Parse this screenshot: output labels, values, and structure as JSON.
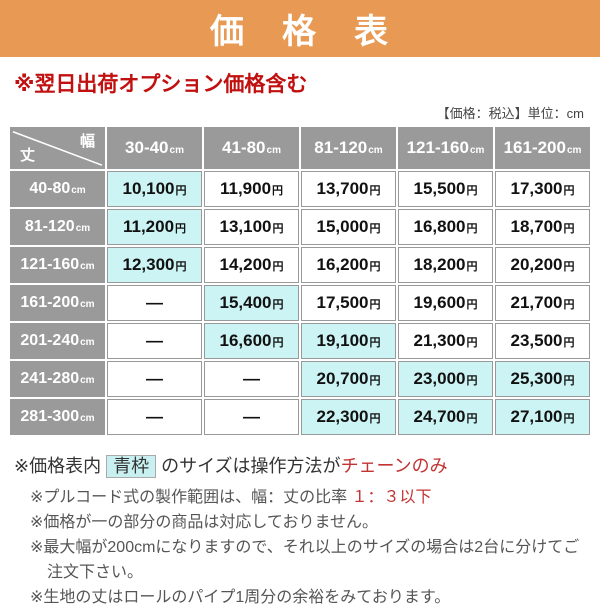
{
  "accent_colors": {
    "banner_orange": "#E89A54",
    "header_gray": "#9A9A9A",
    "highlight_cyan": "#CDF4F4",
    "note_red": "#C01010",
    "em_red": "#C33333"
  },
  "banner": {
    "title": "価　格　表"
  },
  "top_note": "※翌日出荷オプション価格含む",
  "unit_note": "【価格：税込】単位：cm",
  "table": {
    "axis": {
      "col": "幅",
      "row": "丈"
    },
    "unit": "cm",
    "yen": "円",
    "dash": "—",
    "col_headers": [
      "30-40",
      "41-80",
      "81-120",
      "121-160",
      "161-200"
    ],
    "rows": [
      {
        "label": "40-80",
        "cells": [
          {
            "v": "10,100",
            "hl": true
          },
          {
            "v": "11,900"
          },
          {
            "v": "13,700"
          },
          {
            "v": "15,500"
          },
          {
            "v": "17,300"
          }
        ]
      },
      {
        "label": "81-120",
        "cells": [
          {
            "v": "11,200",
            "hl": true
          },
          {
            "v": "13,100"
          },
          {
            "v": "15,000"
          },
          {
            "v": "16,800"
          },
          {
            "v": "18,700"
          }
        ]
      },
      {
        "label": "121-160",
        "cells": [
          {
            "v": "12,300",
            "hl": true
          },
          {
            "v": "14,200"
          },
          {
            "v": "16,200"
          },
          {
            "v": "18,200"
          },
          {
            "v": "20,200"
          }
        ]
      },
      {
        "label": "161-200",
        "cells": [
          {
            "v": "—",
            "dash": true
          },
          {
            "v": "15,400",
            "hl": true
          },
          {
            "v": "17,500"
          },
          {
            "v": "19,600"
          },
          {
            "v": "21,700"
          }
        ]
      },
      {
        "label": "201-240",
        "cells": [
          {
            "v": "—",
            "dash": true
          },
          {
            "v": "16,600",
            "hl": true
          },
          {
            "v": "19,100",
            "hl": true
          },
          {
            "v": "21,300"
          },
          {
            "v": "23,500"
          }
        ]
      },
      {
        "label": "241-280",
        "cells": [
          {
            "v": "—",
            "dash": true
          },
          {
            "v": "—",
            "dash": true
          },
          {
            "v": "20,700",
            "hl": true
          },
          {
            "v": "23,000",
            "hl": true
          },
          {
            "v": "25,300",
            "hl": true
          }
        ]
      },
      {
        "label": "281-300",
        "cells": [
          {
            "v": "—",
            "dash": true
          },
          {
            "v": "—",
            "dash": true
          },
          {
            "v": "22,300",
            "hl": true
          },
          {
            "v": "24,700",
            "hl": true
          },
          {
            "v": "27,100",
            "hl": true
          }
        ]
      }
    ]
  },
  "footnotes": {
    "main": [
      {
        "t": "※価格表内"
      },
      {
        "t": "青枠",
        "badge": true
      },
      {
        "t": "のサイズは操作方法が"
      },
      {
        "t": "チェーンのみ",
        "red": true
      }
    ],
    "items": [
      [
        {
          "t": "※プルコード式の製作範囲は、幅：丈の比率 "
        },
        {
          "t": "１：３以下",
          "red": true
        }
      ],
      [
        {
          "t": "※価格が一の部分の商品は対応しておりません。"
        }
      ],
      [
        {
          "t": "※最大幅が200cmになりますので、それ以上のサイズの場合は2台に分けてご注文下さい。"
        }
      ],
      [
        {
          "t": "※生地の丈はロールのパイプ1周分の余裕をみております。"
        }
      ]
    ]
  },
  "chart_data": {
    "type": "table",
    "title": "価格表",
    "subtitle": "※翌日出荷オプション価格含む",
    "unit": "cm",
    "price_note": "【価格：税込】単位：cm",
    "columns_width_cm": [
      "30-40",
      "41-80",
      "81-120",
      "121-160",
      "161-200"
    ],
    "rows_length_cm": [
      "40-80",
      "81-120",
      "121-160",
      "161-200",
      "201-240",
      "241-280",
      "281-300"
    ],
    "prices_yen": [
      [
        10100,
        11900,
        13700,
        15500,
        17300
      ],
      [
        11200,
        13100,
        15000,
        16800,
        18700
      ],
      [
        12300,
        14200,
        16200,
        18200,
        20200
      ],
      [
        null,
        15400,
        17500,
        19600,
        21700
      ],
      [
        null,
        16600,
        19100,
        21300,
        23500
      ],
      [
        null,
        null,
        20700,
        23000,
        25300
      ],
      [
        null,
        null,
        22300,
        24700,
        27100
      ]
    ],
    "highlight_meaning": "青枠（水色セル）のサイズは操作方法がチェーンのみ",
    "chain_only_cells_row_col": [
      [
        0,
        0
      ],
      [
        1,
        0
      ],
      [
        2,
        0
      ],
      [
        3,
        1
      ],
      [
        4,
        1
      ],
      [
        4,
        2
      ],
      [
        5,
        2
      ],
      [
        5,
        3
      ],
      [
        5,
        4
      ],
      [
        6,
        2
      ],
      [
        6,
        3
      ],
      [
        6,
        4
      ]
    ]
  }
}
